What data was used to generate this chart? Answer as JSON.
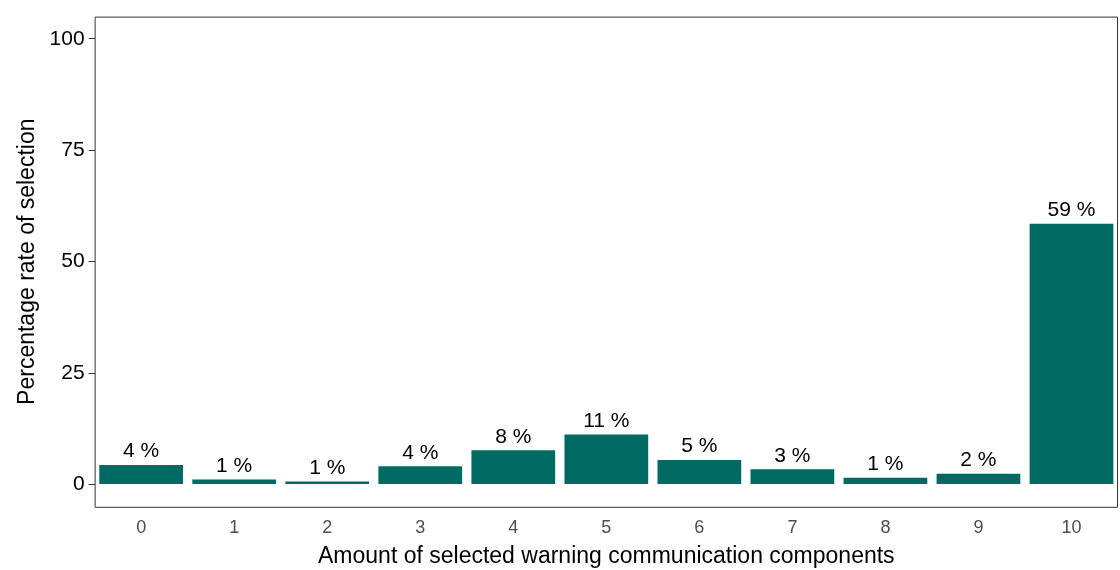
{
  "chart_data": {
    "type": "bar",
    "xlabel": "Amount of selected warning communication components",
    "ylabel": "Percentage rate of selection",
    "categories": [
      "0",
      "1",
      "2",
      "3",
      "4",
      "5",
      "6",
      "7",
      "8",
      "9",
      "10"
    ],
    "values": [
      4.4,
      1.1,
      0.7,
      4.1,
      7.7,
      11.2,
      5.5,
      3.4,
      1.5,
      2.4,
      58.5
    ],
    "value_labels": [
      "4 %",
      "1 %",
      "1 %",
      "4 %",
      "8 %",
      "11 %",
      "5 %",
      "3 %",
      "1 %",
      "2 %",
      "59 %"
    ],
    "color": "#006a63",
    "ylim": [
      -5,
      105
    ],
    "yticks": [
      0,
      25,
      50,
      75,
      100
    ],
    "grid": false,
    "legend": false
  }
}
